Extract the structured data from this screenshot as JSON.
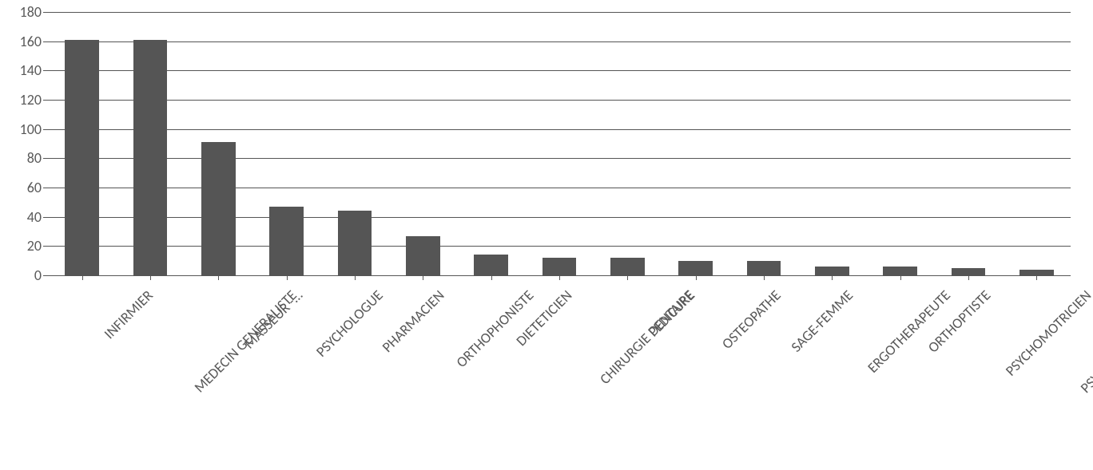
{
  "chart": {
    "type": "bar",
    "categories": [
      "INFIRMIER",
      "MEDECIN GENERALISTE",
      "MASSEUR -…",
      "PSYCHOLOGUE",
      "PHARMACIEN",
      "ORTHOPHONISTE",
      "DIETETICIEN",
      "CHIRURGIE DENTAIRE",
      "PEDICURE",
      "OSTEOPATHE",
      "SAGE-FEMME",
      "ERGOTHERAPEUTE",
      "ORTHOPTISTE",
      "PSYCHOMOTRICIEN",
      "PSYCHIATRIE GENERALE"
    ],
    "values": [
      161,
      161,
      91,
      47,
      44,
      27,
      14,
      12,
      12,
      10,
      10,
      6,
      6,
      5,
      4
    ],
    "bar_color": "#555555",
    "background_color": "#ffffff",
    "grid_color": "#555555",
    "axis_color": "#555555",
    "text_color": "#595959",
    "ylim": [
      0,
      180
    ],
    "ytick_step": 20,
    "bar_width_ratio": 0.5,
    "font_family": "Calibri, Arial, sans-serif",
    "label_fontsize": 18,
    "xlabel_rotation_deg": -45
  }
}
